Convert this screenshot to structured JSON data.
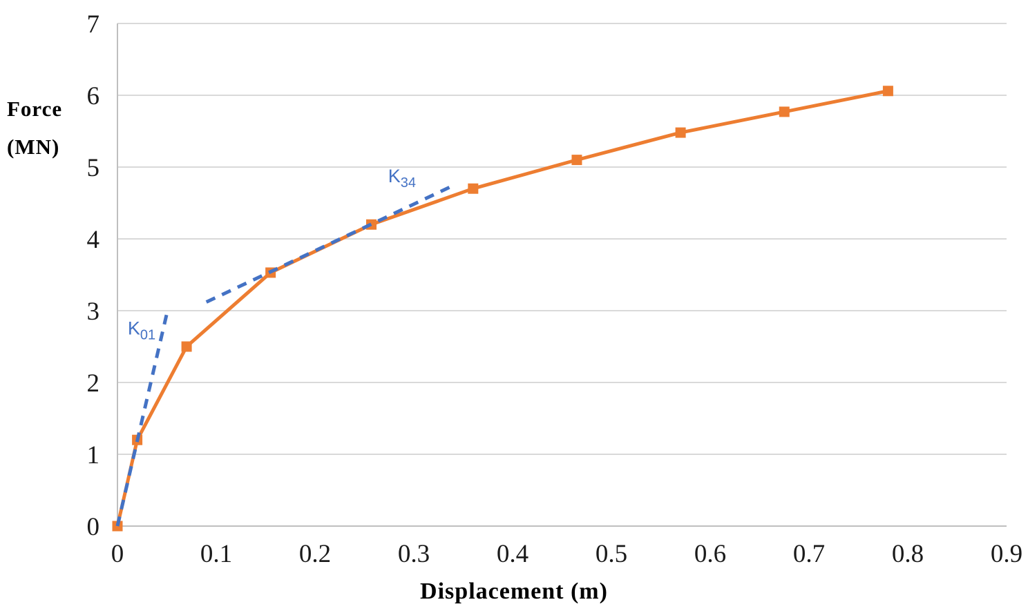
{
  "chart_data": {
    "type": "line",
    "title": "",
    "xlabel": "Displacement (m)",
    "ylabel_line1": "Force",
    "ylabel_line2": "(MN)",
    "xlim": [
      0,
      0.9
    ],
    "ylim": [
      0,
      7
    ],
    "xticks": [
      "0",
      "0.1",
      "0.2",
      "0.3",
      "0.4",
      "0.5",
      "0.6",
      "0.7",
      "0.8",
      "0.9"
    ],
    "yticks": [
      "0",
      "1",
      "2",
      "3",
      "4",
      "5",
      "6",
      "7"
    ],
    "grid": "horizontal-only",
    "legend": "none",
    "colors": {
      "series": "#ED7D31",
      "annotation": "#4472C4",
      "gridline": "#D9D9D9",
      "axis_line": "#BFBFBF",
      "tick_text": "#1a1a1a",
      "title_text": "#000000"
    },
    "series": [
      {
        "name": "force-displacement-curve",
        "marker": "square",
        "x": [
          0,
          0.02,
          0.07,
          0.155,
          0.257,
          0.36,
          0.465,
          0.57,
          0.675,
          0.78
        ],
        "y": [
          0,
          1.2,
          2.5,
          3.53,
          4.2,
          4.7,
          5.1,
          5.48,
          5.77,
          6.06
        ]
      }
    ],
    "annotations": [
      {
        "id": "k01",
        "label_main": "K",
        "label_sub": "01",
        "line": {
          "x1": 0,
          "y1": 0,
          "x2": 0.051,
          "y2": 3.02
        },
        "label_pos": {
          "x": 0.0245,
          "y": 2.67
        }
      },
      {
        "id": "k34",
        "label_main": "K",
        "label_sub": "34",
        "line": {
          "x1": 0.09,
          "y1": 3.12,
          "x2": 0.341,
          "y2": 4.75
        },
        "label_pos": {
          "x": 0.288,
          "y": 4.79
        }
      }
    ]
  }
}
